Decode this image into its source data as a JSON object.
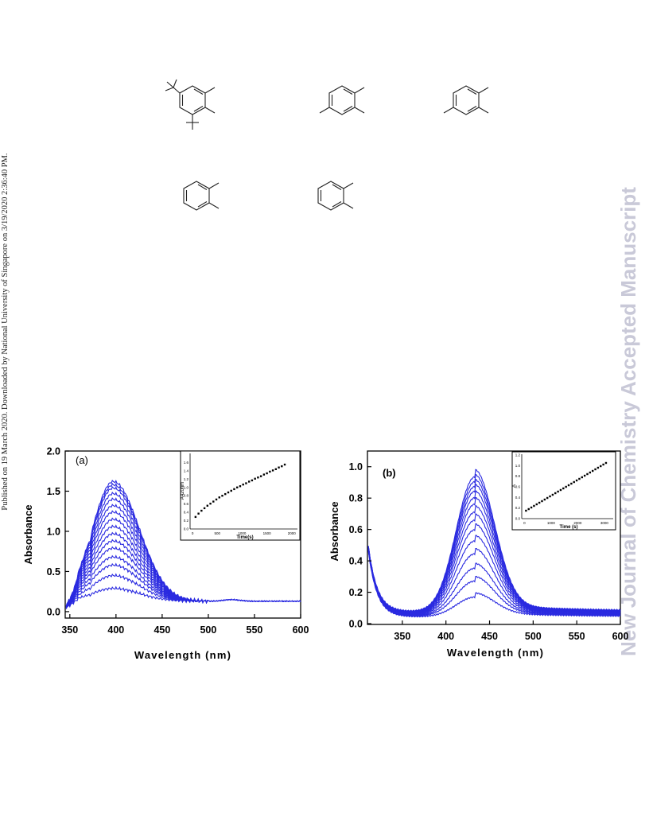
{
  "sidebar_left": "Published on 19 March 2020. Downloaded by National University of Singapore on 3/19/2020 2:36:40 PM.",
  "sidebar_right": "New Journal of Chemistry Accepted Manuscript",
  "colors": {
    "spectra": "#2a2ae0",
    "axis": "#000000",
    "watermark": "#c9c9d8"
  },
  "chart_data": [
    {
      "type": "line",
      "panel_label": "(a)",
      "xlabel": "Wavelength (nm)",
      "ylabel": "Absorbance",
      "xlim": [
        345,
        600
      ],
      "ylim": [
        -0.08,
        2.0
      ],
      "xticks": [
        350,
        400,
        450,
        500,
        550,
        600
      ],
      "yticks": [
        0.0,
        0.5,
        1.0,
        1.5,
        2.0
      ],
      "ytick_labels": [
        "0.0",
        "0.5",
        "1.0",
        "1.5",
        "2.0"
      ],
      "peak_nm": 397,
      "series_peaks": [
        0.29,
        0.45,
        0.58,
        0.68,
        0.79,
        0.88,
        0.97,
        1.06,
        1.15,
        1.24,
        1.32,
        1.4,
        1.47,
        1.54,
        1.58,
        1.62
      ],
      "inset": {
        "type": "scatter",
        "xlabel": "Time(s)",
        "ylabel": "A420nm",
        "xlim": [
          -50,
          2100
        ],
        "ylim": [
          0.0,
          1.8
        ],
        "xticks": [
          0,
          500,
          1000,
          1500,
          2000
        ],
        "yticks": [
          0.0,
          0.2,
          0.4,
          0.6,
          0.8,
          1.0,
          1.2,
          1.4,
          1.6
        ],
        "ytick_labels": [
          "0.0",
          "0.2",
          "0.4",
          "0.6",
          "0.8",
          "1.0",
          "1.2",
          "1.4",
          "1.6"
        ],
        "x": [
          60,
          120,
          180,
          240,
          300,
          360,
          420,
          480,
          540,
          600,
          660,
          720,
          780,
          840,
          900,
          960,
          1020,
          1080,
          1140,
          1200,
          1260,
          1320,
          1380,
          1440,
          1500,
          1560,
          1620,
          1680,
          1740,
          1800,
          1860
        ],
        "y": [
          0.29,
          0.37,
          0.44,
          0.5,
          0.56,
          0.61,
          0.66,
          0.71,
          0.76,
          0.8,
          0.84,
          0.88,
          0.92,
          0.96,
          1.0,
          1.03,
          1.07,
          1.1,
          1.14,
          1.17,
          1.21,
          1.24,
          1.27,
          1.31,
          1.34,
          1.38,
          1.41,
          1.44,
          1.48,
          1.51,
          1.55
        ]
      }
    },
    {
      "type": "line",
      "panel_label": "(b)",
      "xlabel": "Wavelength (nm)",
      "ylabel": "Absorbance",
      "xlim": [
        310,
        600
      ],
      "ylim": [
        -0.005,
        1.1
      ],
      "xticks": [
        350,
        400,
        450,
        500,
        550,
        600
      ],
      "yticks": [
        0.0,
        0.2,
        0.4,
        0.6,
        0.8,
        1.0
      ],
      "ytick_labels": [
        "0.0",
        "0.2",
        "0.4",
        "0.6",
        "0.8",
        "1.0"
      ],
      "peak_nm": 433,
      "series_peaks": [
        0.15,
        0.25,
        0.33,
        0.42,
        0.5,
        0.57,
        0.63,
        0.68,
        0.73,
        0.77,
        0.81,
        0.84,
        0.87,
        0.9
      ],
      "inset": {
        "type": "scatter",
        "xlabel": "Time (s)",
        "ylabel": "A",
        "xlim": [
          -100,
          3300
        ],
        "ylim": [
          0.0,
          1.2
        ],
        "xticks": [
          0,
          1000,
          2000,
          3000
        ],
        "yticks": [
          0.0,
          0.2,
          0.4,
          0.6,
          0.8,
          1.0,
          1.2
        ],
        "ytick_labels": [
          "0.0",
          "0.2",
          "0.4",
          "0.6",
          "0.8",
          "1.0",
          "1.2"
        ],
        "x": [
          60,
          160,
          260,
          360,
          460,
          560,
          660,
          760,
          860,
          960,
          1060,
          1160,
          1260,
          1360,
          1460,
          1560,
          1660,
          1760,
          1860,
          1960,
          2060,
          2160,
          2260,
          2360,
          2460,
          2560,
          2660,
          2760,
          2860,
          2960,
          3060
        ],
        "y": [
          0.15,
          0.18,
          0.21,
          0.24,
          0.27,
          0.3,
          0.33,
          0.36,
          0.39,
          0.42,
          0.45,
          0.48,
          0.51,
          0.54,
          0.57,
          0.6,
          0.63,
          0.66,
          0.69,
          0.72,
          0.75,
          0.78,
          0.81,
          0.84,
          0.87,
          0.9,
          0.93,
          0.96,
          0.99,
          1.02,
          1.05
        ]
      }
    }
  ]
}
